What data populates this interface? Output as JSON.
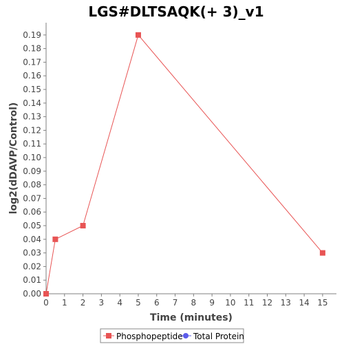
{
  "chart_data": {
    "type": "line",
    "title": "LGS#DLTSAQK(+ 3)_v1",
    "xlabel": "Time (minutes)",
    "ylabel": "log2(dDAVP/Control)",
    "xlim": [
      0,
      15.75
    ],
    "ylim": [
      0,
      0.199
    ],
    "x_ticks": [
      0,
      1,
      2,
      3,
      4,
      5,
      6,
      7,
      8,
      9,
      10,
      11,
      12,
      13,
      14,
      15
    ],
    "x_tick_labels": [
      "0",
      "1",
      "2",
      "3",
      "4",
      "5",
      "6",
      "7",
      "8",
      "9",
      "10",
      "11",
      "12",
      "13",
      "14",
      "15"
    ],
    "y_ticks": [
      0,
      0.01,
      0.02,
      0.03,
      0.04,
      0.05,
      0.06,
      0.07,
      0.08,
      0.09,
      0.1,
      0.11,
      0.12,
      0.13,
      0.14,
      0.15,
      0.16,
      0.17,
      0.18,
      0.19
    ],
    "y_tick_labels": [
      "0.00",
      "0.01",
      "0.02",
      "0.03",
      "0.04",
      "0.05",
      "0.06",
      "0.07",
      "0.08",
      "0.09",
      "0.10",
      "0.11",
      "0.12",
      "0.13",
      "0.14",
      "0.15",
      "0.16",
      "0.17",
      "0.18",
      "0.19"
    ],
    "grid": false,
    "legend_position": "bottom",
    "series": [
      {
        "name": "Phosphopeptide",
        "color": "#e85454",
        "marker": "square",
        "x": [
          0,
          0.5,
          2,
          5,
          15
        ],
        "y": [
          0.0,
          0.04,
          0.05,
          0.19,
          0.03
        ]
      },
      {
        "name": "Total Protein",
        "color": "#5b5bea",
        "marker": "circle",
        "x": [],
        "y": []
      }
    ]
  }
}
